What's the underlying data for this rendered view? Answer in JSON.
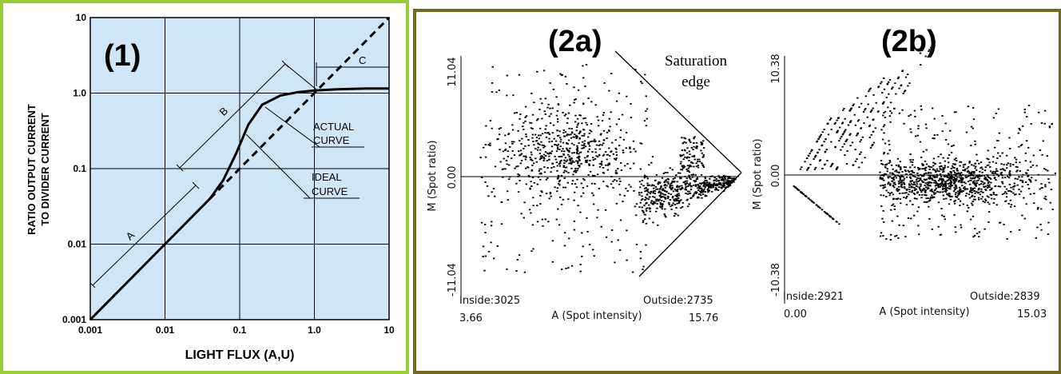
{
  "colors": {
    "panel1_border": "#9acd32",
    "panel2_border": "#6f6a1e",
    "plot1_background": "#cfe6f7",
    "ink": "#000000"
  },
  "panel1": {
    "label": "(1)",
    "xlabel": "LIGHT FLUX (A,U)",
    "ylabel_line1": "RATIO OUTPUT CURRENT",
    "ylabel_line2": "TO DIVIDER CURRENT",
    "annotations": {
      "actual_line1": "ACTUAL",
      "actual_line2": "CURVE",
      "ideal_line1": "IDEAL",
      "ideal_line2": "CURVE",
      "a": "A",
      "b": "B",
      "c": "C"
    }
  },
  "panel2a": {
    "label": "(2a)",
    "ylabel": "M (Spot ratio)",
    "xlabel": "A (Spot intensity)",
    "inside": "Inside:3025",
    "outside": "Outside:2735",
    "saturation_line1": "Saturation",
    "saturation_line2": "edge"
  },
  "panel2b": {
    "label": "(2b)",
    "ylabel": "M (Spot ratio)",
    "xlabel": "A (Spot intensity)",
    "inside": "Inside:2921",
    "outside": "Outside:2839"
  },
  "chart_data": [
    {
      "type": "line",
      "xscale": "log",
      "yscale": "log",
      "xlim": [
        0.001,
        10
      ],
      "ylim": [
        0.001,
        10
      ],
      "xticks": [
        "0.001",
        "0.01",
        "0.1",
        "1.0",
        "10"
      ],
      "yticks": [
        "0.001",
        "0.01",
        "0.1",
        "1.0",
        "10"
      ],
      "grid": true,
      "series": [
        {
          "name": "ACTUAL CURVE",
          "x": [
            0.001,
            0.01,
            0.04,
            0.06,
            0.09,
            0.13,
            0.2,
            0.35,
            0.6,
            1.0,
            2.0,
            5.0,
            10
          ],
          "y": [
            0.001,
            0.01,
            0.04,
            0.07,
            0.16,
            0.38,
            0.7,
            0.93,
            1.03,
            1.08,
            1.12,
            1.15,
            1.15
          ]
        },
        {
          "name": "IDEAL CURVE",
          "x": [
            0.04,
            1.0,
            10
          ],
          "y": [
            0.04,
            1.0,
            10
          ]
        }
      ]
    },
    {
      "type": "scatter",
      "xlim": [
        3.66,
        15.76
      ],
      "ylim": [
        -11.04,
        11.04
      ],
      "xticks": [
        "3.66",
        "15.76"
      ],
      "yticks": [
        "-11.04",
        "0.00",
        "11.04"
      ],
      "grid": false
    },
    {
      "type": "scatter",
      "xlim": [
        0.0,
        15.03
      ],
      "ylim": [
        -10.38,
        10.38
      ],
      "xticks": [
        "0.00",
        "15.03"
      ],
      "yticks": [
        "-10.38",
        "0.00",
        "10.38"
      ],
      "grid": false
    }
  ]
}
